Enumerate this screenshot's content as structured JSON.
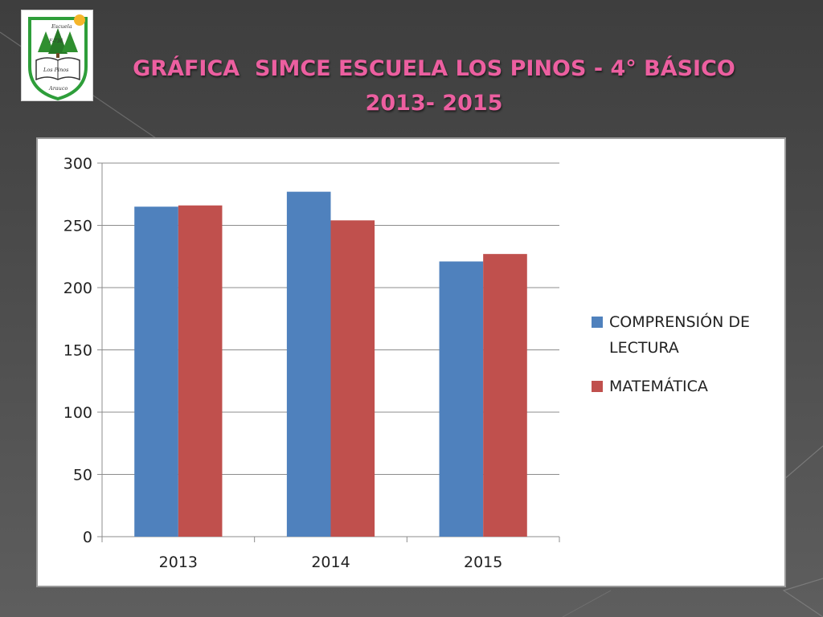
{
  "slide": {
    "title_line1": "GRÁFICA  SIMCE ESCUELA LOS PINOS - 4° BÁSICO",
    "title_line2": "2013- 2015"
  },
  "logo": {
    "text_top": "Escuela",
    "text_number": "F-736",
    "text_book": "Los Pinos",
    "text_bottom": "Arauco"
  },
  "colors": {
    "title": "#ec5fa0",
    "series_lectura": "#4f81bd",
    "series_matematica": "#c0504d",
    "gridline": "#8c8c8c"
  },
  "chart_data": {
    "type": "bar",
    "categories": [
      "2013",
      "2014",
      "2015"
    ],
    "series": [
      {
        "name": "COMPRENSIÓN DE LECTURA",
        "legend_lines": [
          "COMPRENSIÓN DE",
          "LECTURA"
        ],
        "values": [
          265,
          277,
          221
        ],
        "color": "#4f81bd"
      },
      {
        "name": "MATEMÁTICA",
        "legend_lines": [
          "MATEMÁTICA"
        ],
        "values": [
          266,
          254,
          227
        ],
        "color": "#c0504d"
      }
    ],
    "ylim": [
      0,
      300
    ],
    "yticks": [
      0,
      50,
      100,
      150,
      200,
      250,
      300
    ],
    "grid": true,
    "legend_position": "right"
  }
}
